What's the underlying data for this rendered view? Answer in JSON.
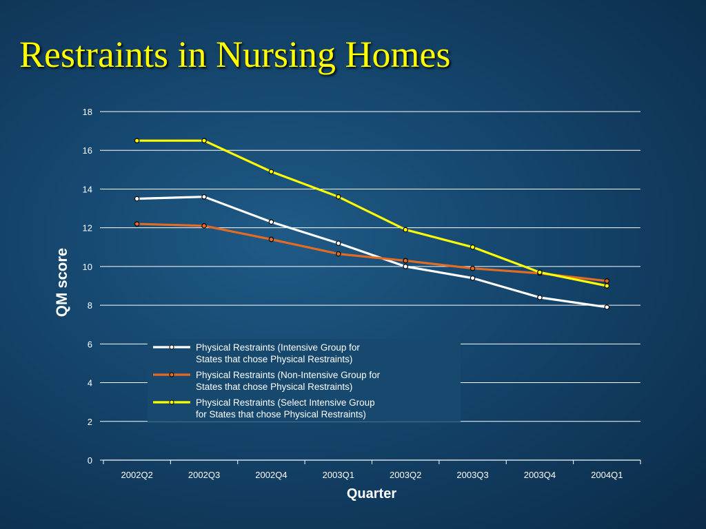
{
  "slide": {
    "title": "Restraints in Nursing Homes",
    "title_color": "#ffff00"
  },
  "chart_data": {
    "type": "line",
    "title": "",
    "xlabel": "Quarter",
    "ylabel": "QM score",
    "categories": [
      "2002Q2",
      "2002Q3",
      "2002Q4",
      "2003Q1",
      "2003Q2",
      "2003Q3",
      "2003Q4",
      "2004Q1"
    ],
    "ylim": [
      0,
      18
    ],
    "yticks": [
      0,
      2,
      4,
      6,
      8,
      10,
      12,
      14,
      16,
      18
    ],
    "grid": true,
    "legend_position": "lower-center",
    "series": [
      {
        "name_lines": [
          "Physical Restraints (Intensive Group for",
          "States that chose Physical Restraints)"
        ],
        "color": "#ffffff",
        "values": [
          13.5,
          13.6,
          12.3,
          11.2,
          10.0,
          9.4,
          8.4,
          7.9
        ]
      },
      {
        "name_lines": [
          "Physical Restraints (Non-Intensive Group for",
          "States that chose Physical Restraints)"
        ],
        "color": "#e36c25",
        "values": [
          12.2,
          12.1,
          11.4,
          10.65,
          10.3,
          9.9,
          9.65,
          9.25
        ]
      },
      {
        "name_lines": [
          "Physical Restraints (Select Intensive Group",
          "for States that chose Physical Restraints)"
        ],
        "color": "#ffff00",
        "values": [
          16.5,
          16.5,
          14.9,
          13.6,
          11.9,
          11.0,
          9.7,
          9.0
        ]
      }
    ]
  }
}
